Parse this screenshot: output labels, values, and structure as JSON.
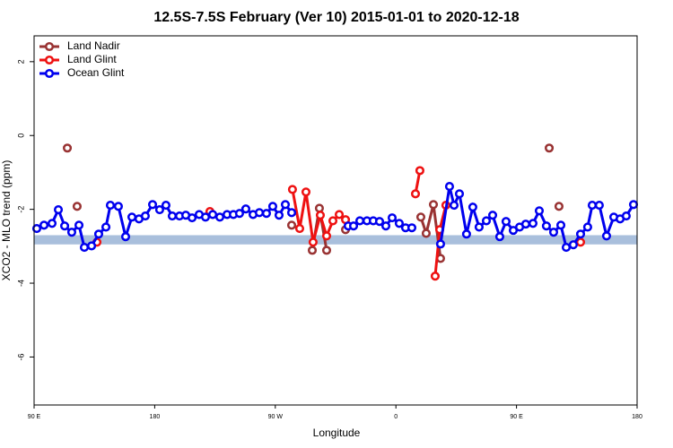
{
  "chart_data": {
    "type": "line",
    "title": "12.5S-7.5S February (Ver 10)   2015-01-01 to 2020-12-18",
    "xlabel": "Longitude",
    "ylabel": "XCO2 - MLO trend (ppm)",
    "xlim": [
      90,
      540
    ],
    "ylim": [
      -7.3,
      2.7
    ],
    "xticks": [
      {
        "value": 90,
        "label": "90 E"
      },
      {
        "value": 180,
        "label": "180"
      },
      {
        "value": 270,
        "label": "90 W"
      },
      {
        "value": 360,
        "label": "0"
      },
      {
        "value": 450,
        "label": "90 E"
      },
      {
        "value": 540,
        "label": "180"
      }
    ],
    "yticks": [
      2,
      0,
      -2,
      -4,
      -6
    ],
    "band": [
      -2.95,
      -2.7
    ],
    "band_color": "#a9bfdc",
    "legend": "top-left",
    "series": [
      {
        "name": "Land Nadir",
        "color": "#993333",
        "x": [
          114.8,
          null,
          122.1,
          null,
          282.2,
          null,
          297.6,
          302.9,
          308.3,
          null,
          322.4,
          null,
          378.6,
          382.6,
          388.0,
          393.3,
          null,
          474.4,
          null,
          481.7
        ],
        "values": [
          -0.34,
          null,
          -1.92,
          null,
          -2.43,
          null,
          -3.11,
          -1.97,
          -3.11,
          null,
          -2.55,
          null,
          -2.21,
          -2.65,
          -1.87,
          -3.33,
          null,
          -0.34,
          null,
          -1.92
        ]
      },
      {
        "name": "Land Glint",
        "color": "#ee1111",
        "x": [
          136.9,
          null,
          221.2,
          null,
          282.8,
          288.2,
          292.9,
          298.2,
          303.6,
          308.3,
          313.0,
          317.7,
          322.4,
          null,
          374.6,
          377.9,
          null,
          389.3,
          392.7,
          397.3,
          null,
          497.8
        ],
        "values": [
          -2.89,
          null,
          -2.06,
          null,
          -1.46,
          -2.52,
          -1.53,
          -2.89,
          -2.16,
          -2.72,
          -2.31,
          -2.14,
          -2.28,
          null,
          -1.58,
          -0.95,
          null,
          -3.81,
          -2.55,
          -1.89,
          null,
          -2.89
        ]
      },
      {
        "name": "Ocean Glint",
        "color": "#0000ee",
        "x": [
          92.0,
          97.4,
          103.4,
          108.1,
          112.8,
          118.1,
          123.5,
          127.5,
          132.9,
          138.2,
          143.6,
          146.9,
          152.9,
          158.3,
          163.0,
          168.3,
          173.0,
          178.4,
          183.7,
          188.4,
          193.1,
          198.5,
          203.2,
          207.9,
          213.2,
          217.9,
          223.3,
          228.6,
          234.0,
          238.7,
          243.3,
          248.0,
          253.4,
          258.1,
          263.4,
          268.1,
          272.8,
          277.5,
          282.2,
          null,
          324.4,
          328.4,
          333.1,
          338.4,
          343.1,
          347.8,
          352.5,
          357.2,
          362.5,
          367.2,
          371.9,
          null,
          393.3,
          400.0,
          403.4,
          407.4,
          412.7,
          417.4,
          422.1,
          427.5,
          432.2,
          437.5,
          442.2,
          447.6,
          452.3,
          456.9,
          462.3,
          467.0,
          472.3,
          477.7,
          483.1,
          487.1,
          492.4,
          497.8,
          503.1,
          506.5,
          511.8,
          517.2,
          522.6,
          527.3,
          531.9,
          537.3
        ],
        "values": [
          -2.52,
          -2.43,
          -2.38,
          -2.01,
          -2.45,
          -2.62,
          -2.43,
          -3.03,
          -2.99,
          -2.67,
          -2.48,
          -1.89,
          -1.92,
          -2.74,
          -2.21,
          -2.26,
          -2.18,
          -1.87,
          -2.01,
          -1.89,
          -2.18,
          -2.18,
          -2.16,
          -2.23,
          -2.14,
          -2.21,
          -2.14,
          -2.21,
          -2.14,
          -2.14,
          -2.11,
          -1.99,
          -2.14,
          -2.09,
          -2.11,
          -1.92,
          -2.16,
          -1.87,
          -2.09,
          null,
          -2.45,
          -2.45,
          -2.31,
          -2.31,
          -2.31,
          -2.33,
          -2.45,
          -2.23,
          -2.38,
          -2.5,
          -2.5,
          null,
          -2.94,
          -1.38,
          -1.89,
          -1.58,
          -2.67,
          -1.94,
          -2.48,
          -2.31,
          -2.16,
          -2.74,
          -2.33,
          -2.57,
          -2.48,
          -2.4,
          -2.38,
          -2.04,
          -2.45,
          -2.62,
          -2.43,
          -3.03,
          -2.96,
          -2.67,
          -2.48,
          -1.89,
          -1.89,
          -2.72,
          -2.21,
          -2.26,
          -2.18,
          -1.87
        ]
      }
    ]
  }
}
